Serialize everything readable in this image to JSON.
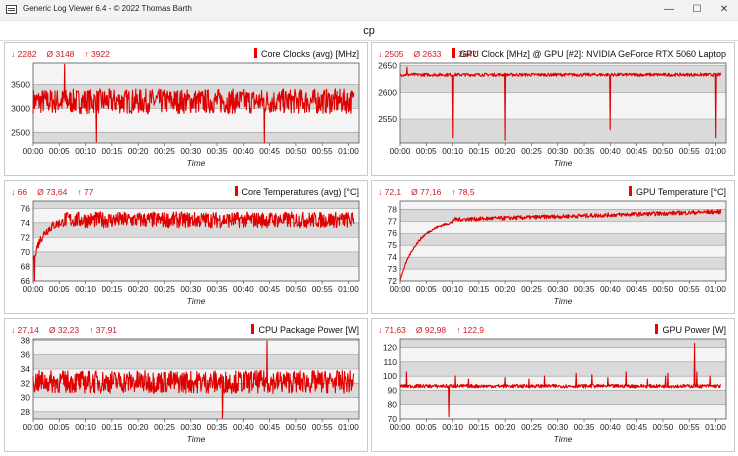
{
  "window": {
    "title": "Generic Log Viewer 6.4 - © 2022 Thomas Barth",
    "minimize": "—",
    "maximize": "☐",
    "close": "✕"
  },
  "page_title": "cp",
  "series_color": "#e00000",
  "chart_data": [
    {
      "type": "line",
      "title": "Core Clocks (avg) [MHz]",
      "stats": {
        "min": "↓ 2282",
        "avg": "Ø 3148",
        "max": "↑ 3922"
      },
      "xlabel": "Time",
      "x_ticks": [
        "00:00",
        "00:05",
        "00:10",
        "00:15",
        "00:20",
        "00:25",
        "00:30",
        "00:35",
        "00:40",
        "00:45",
        "00:50",
        "00:55",
        "01:00"
      ],
      "xlim": [
        0,
        62
      ],
      "y_ticks": [
        2500,
        3000,
        3500
      ],
      "ylim": [
        2280,
        3950
      ],
      "series": [
        {
          "baseline": 3150,
          "noise": 520,
          "spikes": [
            [
              6,
              3922
            ],
            [
              12,
              2300
            ],
            [
              44,
              2282
            ]
          ],
          "drift": 0,
          "warmup": null
        }
      ]
    },
    {
      "type": "line",
      "title": "GPU Clock [MHz] @ GPU [#2]: NVIDIA GeForce RTX 5060 Laptop",
      "stats": {
        "min": "↓ 2505",
        "avg": "Ø 2633",
        "max": "↑ 2647"
      },
      "xlabel": "Time",
      "x_ticks": [
        "00:00",
        "00:05",
        "00:10",
        "00:15",
        "00:20",
        "00:25",
        "00:30",
        "00:35",
        "00:40",
        "00:45",
        "00:50",
        "00:55",
        "01:00"
      ],
      "xlim": [
        0,
        62
      ],
      "y_ticks": [
        2550,
        2600,
        2650
      ],
      "ylim": [
        2505,
        2655
      ],
      "series": [
        {
          "baseline": 2633,
          "noise": 6,
          "spikes": [
            [
              10,
              2515
            ],
            [
              20,
              2510
            ],
            [
              40,
              2530
            ],
            [
              60,
              2515
            ],
            [
              1.3,
              2647
            ]
          ],
          "drift": 0,
          "warmup": null
        }
      ]
    },
    {
      "type": "line",
      "title": "Core Temperatures (avg) [°C]",
      "stats": {
        "min": "↓ 66",
        "avg": "Ø 73,64",
        "max": "↑ 77"
      },
      "xlabel": "Time",
      "x_ticks": [
        "00:00",
        "00:05",
        "00:10",
        "00:15",
        "00:20",
        "00:25",
        "00:30",
        "00:35",
        "00:40",
        "00:45",
        "00:50",
        "00:55",
        "01:00"
      ],
      "xlim": [
        0,
        62
      ],
      "y_ticks": [
        66,
        68,
        70,
        72,
        74,
        76
      ],
      "ylim": [
        66,
        77
      ],
      "series": [
        {
          "baseline": 74.4,
          "noise": 2.2,
          "spikes": [
            [
              0.3,
              66
            ]
          ],
          "drift": 0,
          "warmup": [
            0,
            69,
            6
          ]
        }
      ]
    },
    {
      "type": "line",
      "title": "GPU Temperature [°C]",
      "stats": {
        "min": "↓ 72,1",
        "avg": "Ø 77,16",
        "max": "↑ 78,5"
      },
      "xlabel": "Time",
      "x_ticks": [
        "00:00",
        "00:05",
        "00:10",
        "00:15",
        "00:20",
        "00:25",
        "00:30",
        "00:35",
        "00:40",
        "00:45",
        "00:50",
        "00:55",
        "01:00"
      ],
      "xlim": [
        0,
        62
      ],
      "y_ticks": [
        72,
        73,
        74,
        75,
        76,
        77,
        78
      ],
      "ylim": [
        72,
        78.7
      ],
      "series": [
        {
          "baseline": 77.4,
          "noise": 0.35,
          "spikes": [],
          "drift": 0.8,
          "warmup": [
            0,
            72.1,
            10
          ]
        }
      ]
    },
    {
      "type": "line",
      "title": "CPU Package Power [W]",
      "stats": {
        "min": "↓ 27,14",
        "avg": "Ø 32,23",
        "max": "↑ 37,91"
      },
      "xlabel": "Time",
      "x_ticks": [
        "00:00",
        "00:05",
        "00:10",
        "00:15",
        "00:20",
        "00:25",
        "00:30",
        "00:35",
        "00:40",
        "00:45",
        "00:50",
        "00:55",
        "01:00"
      ],
      "xlim": [
        0,
        62
      ],
      "y_ticks": [
        28,
        30,
        32,
        34,
        36,
        38
      ],
      "ylim": [
        27,
        38.2
      ],
      "series": [
        {
          "baseline": 32.2,
          "noise": 3.2,
          "spikes": [
            [
              44.5,
              37.91
            ],
            [
              36,
              27.14
            ]
          ],
          "drift": 0,
          "warmup": null
        }
      ]
    },
    {
      "type": "line",
      "title": "GPU Power [W]",
      "stats": {
        "min": "↓ 71,63",
        "avg": "Ø 92,98",
        "max": "↑ 122,9"
      },
      "xlabel": "Time",
      "x_ticks": [
        "00:00",
        "00:05",
        "00:10",
        "00:15",
        "00:20",
        "00:25",
        "00:30",
        "00:35",
        "00:40",
        "00:45",
        "00:50",
        "00:55",
        "01:00"
      ],
      "xlim": [
        0,
        62
      ],
      "y_ticks": [
        70,
        80,
        90,
        100,
        110,
        120
      ],
      "ylim": [
        70,
        126
      ],
      "series": [
        {
          "baseline": 93,
          "noise": 2.5,
          "spikes": [
            [
              1.2,
              103
            ],
            [
              9.3,
              71.63
            ],
            [
              10.5,
              100
            ],
            [
              13,
              98
            ],
            [
              20,
              99
            ],
            [
              27.5,
              100
            ],
            [
              33.5,
              102
            ],
            [
              36.5,
              101
            ],
            [
              39.5,
              99
            ],
            [
              43,
              103
            ],
            [
              51,
              102
            ],
            [
              56.5,
              103
            ],
            [
              59,
              100
            ],
            [
              50.5,
              100
            ],
            [
              56,
              122.9
            ],
            [
              24.5,
              98
            ],
            [
              47,
              98
            ]
          ],
          "drift": 0,
          "warmup": null
        }
      ]
    }
  ]
}
